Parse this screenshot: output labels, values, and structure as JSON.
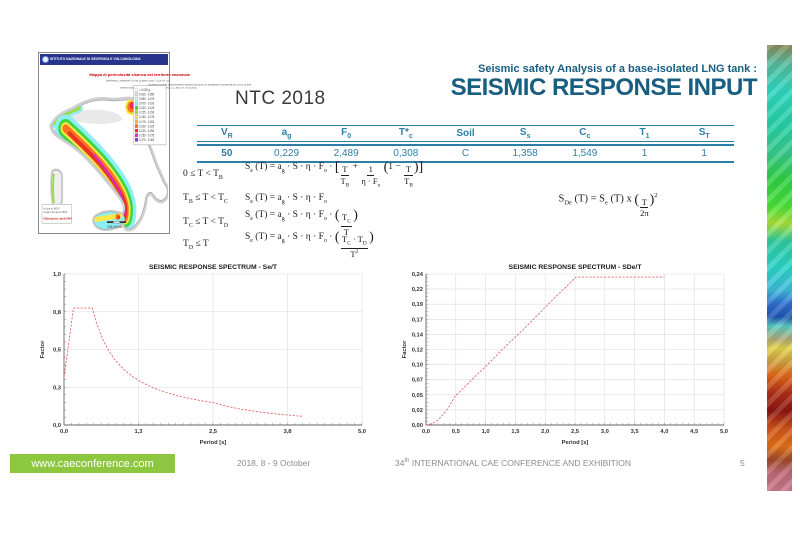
{
  "colors": {
    "accent_teal": "#175e80",
    "table_teal": "#2e7fa8",
    "curve_red": "#e06a6a",
    "footer_green": "#8dc63f",
    "map_header_blue": "#27348b",
    "map_title_red": "#cc0000"
  },
  "header": {
    "subtitle": "Seismic safety Analysis of a base-isolated LNG tank :",
    "title": "SEISMIC RESPONSE INPUT"
  },
  "ntc_label": "NTC 2018",
  "map": {
    "org": "ISTITUTO NAZIONALE DI GEOFISICA E VULCANOLOGIA",
    "title": "Mappa di pericolosità sismica del territorio nazionale",
    "sub1": "(riferimento: Ordinanza PCM del 28 aprile 2006 n. 3519, All. 1b)",
    "sub2": "espressa in termini di accelerazione massima del suolo con probabilità di eccedenza del 10% in 50 anni",
    "sub3": "riferita a suoli rigidi (Vs30 > 800 m/s; cat. A, punto 3.2.1 del D.M. 14.09.2005)",
    "legend": [
      {
        "color": "#ffffff",
        "label": "< 0.025 g"
      },
      {
        "color": "#dcdcdc",
        "label": "0.025 - 0.050"
      },
      {
        "color": "#d4f9fc",
        "label": "0.050 - 0.075"
      },
      {
        "color": "#8deef6",
        "label": "0.075 - 0.100"
      },
      {
        "color": "#3ed63e",
        "label": "0.100 - 0.125"
      },
      {
        "color": "#9ae042",
        "label": "0.125 - 0.150"
      },
      {
        "color": "#ffe84a",
        "label": "0.150 - 0.175"
      },
      {
        "color": "#ffb13e",
        "label": "0.175 - 0.200"
      },
      {
        "color": "#ff7421",
        "label": "0.200 - 0.225"
      },
      {
        "color": "#e63323",
        "label": "0.225 - 0.250"
      },
      {
        "color": "#d62bc8",
        "label": "0.250 - 0.275"
      },
      {
        "color": "#9032cc",
        "label": "0.275 - 0.300"
      }
    ],
    "note_lines": [
      "A cura di: INGV",
      "Gruppo di Lavoro MPS",
      "Elaborazione: aprile 2004"
    ],
    "scale": "0    50   100 km"
  },
  "table": {
    "headers": [
      {
        "t": "V",
        "s": "R"
      },
      {
        "t": "a",
        "s": "g"
      },
      {
        "t": "F",
        "s": "0"
      },
      {
        "t": "T*",
        "s": "c"
      },
      {
        "t": "Soil",
        "s": ""
      },
      {
        "t": "S",
        "s": "s"
      },
      {
        "t": "C",
        "s": "c"
      },
      {
        "t": "T",
        "s": "1"
      },
      {
        "t": "S",
        "s": "T"
      }
    ],
    "values": [
      "50",
      "0,229",
      "2,489",
      "0,308",
      "C",
      "1,358",
      "1,549",
      "1",
      "1"
    ]
  },
  "formulas": {
    "rows": [
      {
        "cond": [
          {
            "t": "0 ≤ T < T"
          },
          {
            "s": "B"
          }
        ],
        "expr": [
          {
            "t": "S"
          },
          {
            "s": "e"
          },
          {
            "t": " (T) = a"
          },
          {
            "s": "g"
          },
          {
            "t": " · S · η · F"
          },
          {
            "s": "o"
          },
          {
            "t": " · "
          },
          {
            "p": "["
          },
          {
            "f": {
              "n": [
                {
                  "t": "T"
                }
              ],
              "d": [
                {
                  "t": "T"
                },
                {
                  "s": "B"
                }
              ]
            }
          },
          {
            "t": " + "
          },
          {
            "f": {
              "n": [
                {
                  "t": "1"
                }
              ],
              "d": [
                {
                  "t": "η · F"
                },
                {
                  "s": "o"
                }
              ]
            }
          },
          {
            "t": " "
          },
          {
            "p": "("
          },
          {
            "t": "1 − "
          },
          {
            "f": {
              "n": [
                {
                  "t": "T"
                }
              ],
              "d": [
                {
                  "t": "T"
                },
                {
                  "s": "B"
                }
              ]
            }
          },
          {
            "p": ")"
          },
          {
            "p": "]"
          }
        ]
      },
      {
        "cond": [
          {
            "t": "T"
          },
          {
            "s": "B"
          },
          {
            "t": " ≤ T < T"
          },
          {
            "s": "C"
          }
        ],
        "expr": [
          {
            "t": "S"
          },
          {
            "s": "e"
          },
          {
            "t": " (T) = a"
          },
          {
            "s": "g"
          },
          {
            "t": " · S · η · F"
          },
          {
            "s": "o"
          }
        ]
      },
      {
        "cond": [
          {
            "t": "T"
          },
          {
            "s": "C"
          },
          {
            "t": " ≤ T < T"
          },
          {
            "s": "D"
          }
        ],
        "expr": [
          {
            "t": "S"
          },
          {
            "s": "e"
          },
          {
            "t": " (T) = a"
          },
          {
            "s": "g"
          },
          {
            "t": " · S · η · F"
          },
          {
            "s": "o"
          },
          {
            "t": " · "
          },
          {
            "p": "("
          },
          {
            "f": {
              "n": [
                {
                  "t": "T"
                },
                {
                  "s": "C"
                }
              ],
              "d": [
                {
                  "t": "T"
                }
              ]
            }
          },
          {
            "p": ")"
          }
        ]
      },
      {
        "cond": [
          {
            "t": "T"
          },
          {
            "s": "D"
          },
          {
            "t": " ≤ T"
          }
        ],
        "expr": [
          {
            "t": "S"
          },
          {
            "s": "e"
          },
          {
            "t": " (T) = a"
          },
          {
            "s": "g"
          },
          {
            "t": " · S · η · F"
          },
          {
            "s": "o"
          },
          {
            "t": " · "
          },
          {
            "p": "("
          },
          {
            "f": {
              "n": [
                {
                  "t": "T"
                },
                {
                  "s": "C"
                },
                {
                  "t": " · T"
                },
                {
                  "s": "D"
                }
              ],
              "d": [
                {
                  "t": "T"
                },
                {
                  "u": "2"
                }
              ]
            }
          },
          {
            "p": ")"
          }
        ]
      }
    ],
    "displacement": [
      {
        "t": "S"
      },
      {
        "s": "De"
      },
      {
        "t": " (T) = S"
      },
      {
        "s": "e"
      },
      {
        "t": " (T) x "
      },
      {
        "p": "("
      },
      {
        "f": {
          "n": [
            {
              "t": "T"
            }
          ],
          "d": [
            {
              "t": "2π"
            }
          ]
        }
      },
      {
        "p": ")"
      },
      {
        "u": "2"
      }
    ]
  },
  "chart_data": [
    {
      "type": "line",
      "title": "SEISMIC RESPONSE  SPECTRUM - Se/T",
      "xlabel": "Period [s]",
      "ylabel": "Factor",
      "xlim": [
        0,
        5
      ],
      "ylim": [
        0,
        1
      ],
      "x_major": 1.25,
      "x_minor": 0.125,
      "y_major": 0.25,
      "y_minor": 0.05,
      "x_tick_labels": [
        "0,0",
        "1,3",
        "2,5",
        "3,8",
        "5,0"
      ],
      "y_tick_labels": [
        "0,0",
        "0,3",
        "0,5",
        "0,8",
        "1,0"
      ],
      "grid": true,
      "series": [
        {
          "name": "Se",
          "color": "#e06a6a",
          "points": [
            [
              0,
              0.311
            ],
            [
              0.08,
              0.545
            ],
            [
              0.159,
              0.774
            ],
            [
              0.3,
              0.774
            ],
            [
              0.477,
              0.774
            ],
            [
              0.55,
              0.671
            ],
            [
              0.65,
              0.568
            ],
            [
              0.75,
              0.492
            ],
            [
              0.85,
              0.434
            ],
            [
              1.0,
              0.369
            ],
            [
              1.15,
              0.321
            ],
            [
              1.3,
              0.284
            ],
            [
              1.5,
              0.246
            ],
            [
              1.7,
              0.217
            ],
            [
              1.9,
              0.194
            ],
            [
              2.1,
              0.176
            ],
            [
              2.3,
              0.161
            ],
            [
              2.516,
              0.147
            ],
            [
              2.7,
              0.127
            ],
            [
              2.9,
              0.11
            ],
            [
              3.1,
              0.097
            ],
            [
              3.3,
              0.085
            ],
            [
              3.5,
              0.076
            ],
            [
              3.7,
              0.068
            ],
            [
              3.9,
              0.061
            ],
            [
              4.0,
              0.058
            ]
          ]
        }
      ]
    },
    {
      "type": "line",
      "title": "SEISMIC RESPONSE  SPECTRUM - SDe/T",
      "xlabel": "Period [s]",
      "ylabel": "Factor",
      "xlim": [
        0,
        5
      ],
      "ylim": [
        0,
        0.24
      ],
      "x_major": 0.5,
      "x_minor": 0.1,
      "y_major": 0.024,
      "y_minor": 0.006,
      "x_tick_labels": [
        "0,0",
        "0,5",
        "1,0",
        "1,5",
        "2,0",
        "2,5",
        "3,0",
        "3,5",
        "4,0",
        "4,5",
        "5,0"
      ],
      "y_tick_labels": [
        "0,00",
        "0,02",
        "0,05",
        "0,07",
        "0,10",
        "0,12",
        "0,14",
        "0,17",
        "0,19",
        "0,22",
        "0,24"
      ],
      "grid": true,
      "series": [
        {
          "name": "SDe",
          "color": "#e06a6a",
          "points": [
            [
              0,
              0
            ],
            [
              0.1,
              0.002
            ],
            [
              0.2,
              0.008
            ],
            [
              0.3,
              0.018
            ],
            [
              0.4,
              0.031
            ],
            [
              0.477,
              0.0446
            ],
            [
              0.6,
              0.056
            ],
            [
              0.8,
              0.075
            ],
            [
              1.0,
              0.093
            ],
            [
              1.2,
              0.112
            ],
            [
              1.4,
              0.131
            ],
            [
              1.6,
              0.149
            ],
            [
              1.8,
              0.168
            ],
            [
              2.0,
              0.187
            ],
            [
              2.2,
              0.206
            ],
            [
              2.4,
              0.224
            ],
            [
              2.516,
              0.235
            ],
            [
              2.8,
              0.235
            ],
            [
              3.2,
              0.235
            ],
            [
              3.6,
              0.235
            ],
            [
              4.0,
              0.235
            ]
          ]
        }
      ]
    }
  ],
  "footer": {
    "site": "www.caeconference.com",
    "date": "2018, 8 -  9 October",
    "conference": [
      {
        "t": "34"
      },
      {
        "u": "th"
      },
      {
        "t": " INTERNATIONAL CAE CONFERENCE AND EXHIBITION"
      }
    ],
    "page": "5"
  }
}
